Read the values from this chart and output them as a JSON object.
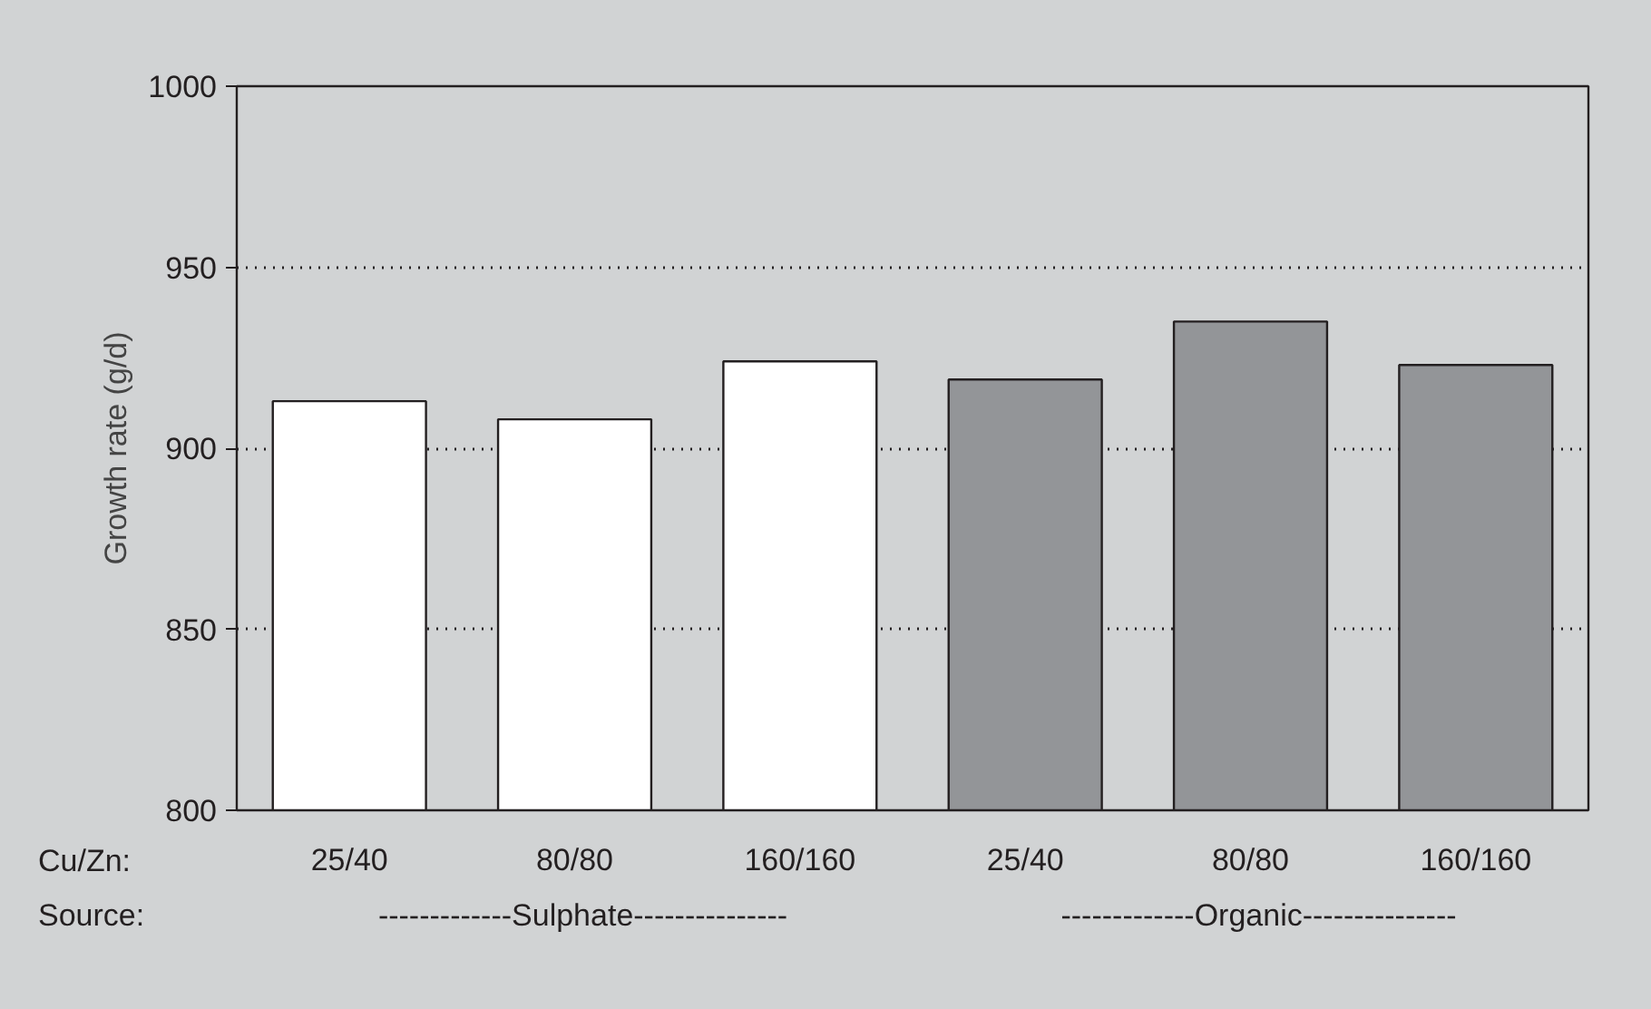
{
  "chart_data": {
    "type": "bar",
    "ylabel": "Growth rate (g/d)",
    "categories": [
      "25/40",
      "80/80",
      "160/160",
      "25/40",
      "80/80",
      "160/160"
    ],
    "values": [
      913,
      908,
      924,
      919,
      935,
      923
    ],
    "colors": [
      "#ffffff",
      "#ffffff",
      "#ffffff",
      "#939598",
      "#939598",
      "#939598"
    ],
    "ylim": [
      800,
      1000
    ],
    "yticks": [
      800,
      850,
      900,
      950,
      1000
    ],
    "grid": "y",
    "annotations": [
      "Cu/Zn:",
      "Source:",
      "-------------Sulphate---------------",
      "-------------Organic---------------"
    ]
  }
}
